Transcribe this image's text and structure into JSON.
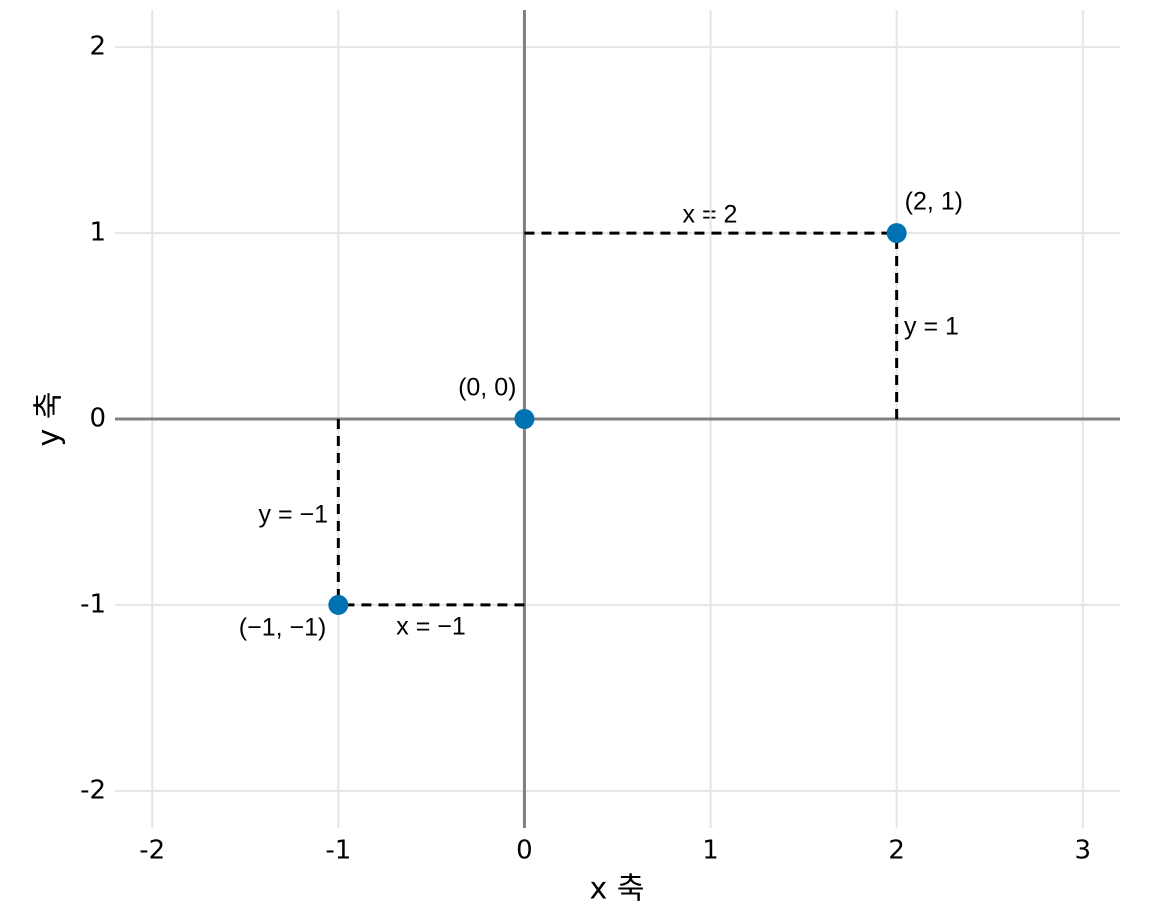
{
  "chart_data": {
    "type": "scatter",
    "x_label": "x 축",
    "y_label": "y 축",
    "x": [
      -1,
      0,
      2
    ],
    "values": [
      -1,
      0,
      1
    ],
    "value_labels": [
      "(−1, −1)",
      "(0, 0)",
      "(2, 1)"
    ],
    "color": "#0072b2",
    "xlim": [
      -2.2,
      3.2
    ],
    "ylim": [
      -2.2,
      2.2
    ],
    "xticks": [
      -2,
      -1,
      0,
      1,
      2,
      3
    ],
    "yticks": [
      -2,
      -1,
      0,
      1,
      2
    ],
    "grid": true,
    "guides": true,
    "annotations": [
      {
        "text": "x = 2"
      },
      {
        "text": "y = 1"
      },
      {
        "text": "y = −1"
      },
      {
        "text": "x = −1"
      }
    ]
  }
}
